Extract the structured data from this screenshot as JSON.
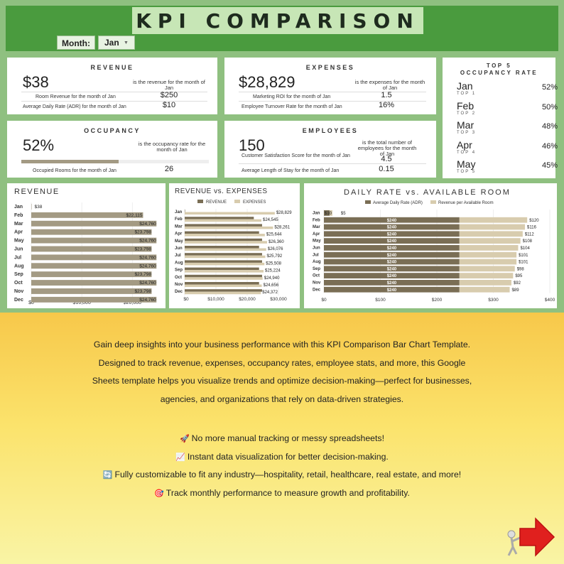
{
  "header": {
    "title": "KPI COMPARISON",
    "month_label": "Month:",
    "month_value": "Jan"
  },
  "revenue_card": {
    "title": "REVENUE",
    "value": "$38",
    "desc": "is the revenue for the month of Jan",
    "sub1_label": "Room Revenue for the month of Jan",
    "sub1_value": "$250",
    "sub2_label": "Average Daily Rate (ADR) for the month of Jan",
    "sub2_value": "$10"
  },
  "expenses_card": {
    "title": "EXPENSES",
    "value": "$28,829",
    "desc": "is the expenses for the month of Jan",
    "sub1_label": "Marketing ROI for the month of Jan",
    "sub1_value": "1.5",
    "sub2_label": "Employee Turnover Rate for the month of Jan",
    "sub2_value": "16%"
  },
  "occupancy_card": {
    "title": "OCCUPANCY",
    "value": "52%",
    "desc": "is the occupancy rate for the month of Jan",
    "sub1_label": "Occupied Rooms for the month of Jan",
    "sub1_value": "26",
    "progress": 0.52
  },
  "employees_card": {
    "title": "EMPLOYEES",
    "value": "150",
    "desc": "is the total number of employees for the month of Jan",
    "sub1_label": "Customer Satisfaction Score for the month of Jan",
    "sub1_value": "4.5",
    "sub2_label": "Average Length of Stay for the month of Jan",
    "sub2_value": "0.15"
  },
  "top5": {
    "title1": "TOP 5",
    "title2": "OCCUPANCY RATE",
    "items": [
      {
        "month": "Jan",
        "label": "TOP 1",
        "value": "52%"
      },
      {
        "month": "Feb",
        "label": "TOP 2",
        "value": "50%"
      },
      {
        "month": "Mar",
        "label": "TOP 3",
        "value": "48%"
      },
      {
        "month": "Apr",
        "label": "TOP 4",
        "value": "46%"
      },
      {
        "month": "May",
        "label": "TOP 5",
        "value": "45%"
      }
    ]
  },
  "colors": {
    "header_green": "#4a9b3e",
    "dash_bg": "#8fc080",
    "dark_bar": "#7a6e55",
    "light_bar": "#d8ccae",
    "mid_bar": "#a39a83"
  },
  "chart_data": [
    {
      "type": "bar",
      "title": "REVENUE",
      "orientation": "horizontal",
      "categories": [
        "Jan",
        "Feb",
        "Mar",
        "Apr",
        "May",
        "Jun",
        "Jul",
        "Aug",
        "Sep",
        "Oct",
        "Nov",
        "Dec"
      ],
      "values": [
        38,
        22115,
        24760,
        23798,
        24760,
        23798,
        24760,
        24760,
        23798,
        24760,
        23798,
        24760
      ],
      "labels": [
        "$38",
        "$22,115",
        "$24,760",
        "$23,798",
        "$24,760",
        "$23,798",
        "$24,760",
        "$24,760",
        "$23,798",
        "$24,760",
        "$23,798",
        "$24,760"
      ],
      "xlim": [
        0,
        25000
      ],
      "ticks": [
        "$0",
        "$10,000",
        "$20,000"
      ],
      "tickvals": [
        0,
        10000,
        20000
      ]
    },
    {
      "type": "bar",
      "title": "REVENUE vs. EXPENSES",
      "orientation": "horizontal",
      "legend": "top",
      "categories": [
        "Jan",
        "Feb",
        "Mar",
        "Apr",
        "May",
        "Jun",
        "Jul",
        "Aug",
        "Sep",
        "Oct",
        "Nov",
        "Dec"
      ],
      "series": [
        {
          "name": "REVENUE",
          "values": [
            38,
            22115,
            24760,
            23798,
            24760,
            23798,
            24760,
            24760,
            23798,
            24760,
            23798,
            24760
          ]
        },
        {
          "name": "EXPENSES",
          "values": [
            28829,
            24545,
            28261,
            25644,
            26360,
            26076,
            25792,
            25508,
            25224,
            24940,
            24656,
            24372
          ]
        }
      ],
      "labels": [
        "$28,829",
        "$24,545",
        "$28,261",
        "$25,644",
        "$26,360",
        "$26,076",
        "$25,792",
        "$25,508",
        "$25,224",
        "$24,940",
        "$24,656",
        "$24,372"
      ],
      "xlim": [
        0,
        30000
      ],
      "ticks": [
        "$0",
        "$10,000",
        "$20,000",
        "$30,000"
      ],
      "tickvals": [
        0,
        10000,
        20000,
        30000
      ]
    },
    {
      "type": "bar",
      "title": "DAILY RATE vs. AVAILABLE ROOM",
      "orientation": "horizontal",
      "stacked": true,
      "legend": "top",
      "categories": [
        "Jan",
        "Feb",
        "Mar",
        "Apr",
        "May",
        "Jun",
        "Jul",
        "Aug",
        "Sep",
        "Oct",
        "Nov",
        "Dec"
      ],
      "series": [
        {
          "name": "Average Daily Rate (ADR)",
          "values": [
            10,
            240,
            240,
            240,
            240,
            240,
            240,
            240,
            240,
            240,
            240,
            240
          ],
          "labels": [
            "$10",
            "$240",
            "$240",
            "$240",
            "$240",
            "$240",
            "$240",
            "$240",
            "$240",
            "$240",
            "$240",
            "$240"
          ]
        },
        {
          "name": "Revenue per Available Room",
          "values": [
            5,
            120,
            116,
            112,
            108,
            104,
            101,
            101,
            98,
            95,
            92,
            89
          ],
          "labels": [
            "$5",
            "$120",
            "$116",
            "$112",
            "$108",
            "$104",
            "$101",
            "$101",
            "$98",
            "$95",
            "$92",
            "$89"
          ]
        }
      ],
      "xlim": [
        0,
        400
      ],
      "ticks": [
        "$0",
        "$100",
        "$200",
        "$300",
        "$400"
      ],
      "tickvals": [
        0,
        100,
        200,
        300,
        400
      ]
    }
  ],
  "promo": {
    "lines": [
      "Gain deep insights into your business performance with this KPI Comparison Bar Chart Template.",
      "Designed to track revenue, expenses, occupancy rates, employee stats, and more, this Google",
      "Sheets template helps you visualize trends and optimize decision-making—perfect for businesses,",
      "agencies, and organizations that rely on data-driven strategies."
    ],
    "bullets": [
      {
        "icon": "rocket-icon",
        "text": "No more manual tracking or messy spreadsheets!"
      },
      {
        "icon": "chart-increasing-icon",
        "text": "Instant data visualization for better decision-making."
      },
      {
        "icon": "refresh-icon",
        "text": "Fully customizable to fit any industry—hospitality, retail, healthcare, real estate, and more!"
      },
      {
        "icon": "target-icon",
        "text": "Track monthly performance to measure growth and profitability."
      }
    ]
  }
}
